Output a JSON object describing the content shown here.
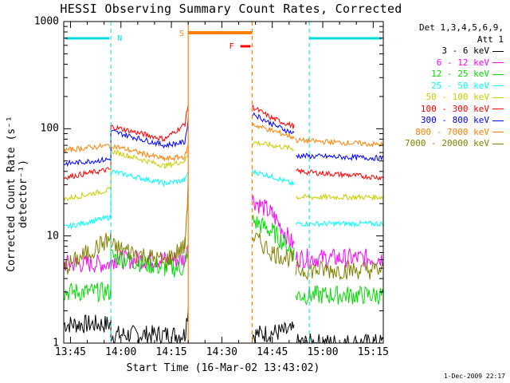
{
  "title": "HESSI Observing Summary Count Rates, Corrected",
  "xlabel": "Start Time (16-Mar-02 13:43:02)",
  "ylabel": "Corrected Count Rate (s⁻¹ detector⁻¹)",
  "timestamp": "1-Dec-2009 22:17",
  "legend": {
    "header_line1": "Det 1,3,4,5,6,9,",
    "header_line2": "Att 1",
    "items": [
      {
        "label": "3 - 6 keV",
        "color": "#000000"
      },
      {
        "label": "6 - 12 keV",
        "color": "#ff00ff"
      },
      {
        "label": "12 - 25 keV",
        "color": "#00dd00"
      },
      {
        "label": "25 - 50 keV",
        "color": "#00ffff"
      },
      {
        "label": "50 - 100 keV",
        "color": "#cccc00"
      },
      {
        "label": "100 - 300 keV",
        "color": "#ff0000"
      },
      {
        "label": "300 - 800 keV",
        "color": "#0000ff"
      },
      {
        "label": "800 - 7000 keV",
        "color": "#ff8000"
      },
      {
        "label": "7000 - 20000 keV",
        "color": "#808000"
      }
    ]
  },
  "x_tick_labels": [
    "13:45",
    "14:00",
    "14:15",
    "14:30",
    "14:45",
    "15:00",
    "15:15"
  ],
  "y_tick_labels": [
    "1",
    "10",
    "100",
    "1000"
  ],
  "flags": [
    {
      "label": "N",
      "color": "#00dddd"
    },
    {
      "label": "S",
      "color": "#ff8000"
    },
    {
      "label": "F",
      "color": "#ff0000"
    }
  ],
  "chart_data": {
    "type": "line",
    "y_scale": "log",
    "ylim": [
      1,
      1000
    ],
    "xlim_minutes": [
      -2,
      93
    ],
    "x_ticks_minutes": [
      0,
      15,
      30,
      45,
      60,
      75,
      90
    ],
    "gaps": [
      [
        35,
        54
      ],
      [
        66.5,
        67
      ]
    ],
    "night_boundaries": [
      12,
      71
    ],
    "saa": [
      35,
      54
    ],
    "flare": [
      50.5,
      53.5
    ],
    "series": [
      {
        "name": "3 - 6 keV",
        "segments": [
          [
            [
              -2,
              1.5
            ],
            [
              12,
              1.5
            ],
            [
              12,
              1.2
            ],
            [
              34,
              1.2
            ],
            [
              35,
              2.2
            ]
          ],
          [
            [
              54,
              1.2
            ],
            [
              66.5,
              1.3
            ]
          ],
          [
            [
              67,
              1.0
            ],
            [
              93,
              1.0
            ]
          ]
        ]
      },
      {
        "name": "6 - 12 keV",
        "segments": [
          [
            [
              -2,
              5.5
            ],
            [
              12,
              5.5
            ],
            [
              12,
              6.0
            ],
            [
              34,
              6.0
            ],
            [
              35,
              10
            ]
          ],
          [
            [
              54,
              22
            ],
            [
              60,
              16
            ],
            [
              66.5,
              8
            ]
          ],
          [
            [
              67,
              6.2
            ],
            [
              93,
              6.2
            ]
          ]
        ]
      },
      {
        "name": "12 - 25 keV",
        "segments": [
          [
            [
              -2,
              3.0
            ],
            [
              12,
              3.0
            ],
            [
              12,
              6.5
            ],
            [
              28,
              5.0
            ],
            [
              34,
              5.0
            ],
            [
              35,
              8
            ]
          ],
          [
            [
              54,
              14
            ],
            [
              60,
              11
            ],
            [
              66.5,
              7
            ]
          ],
          [
            [
              67,
              2.8
            ],
            [
              93,
              2.8
            ]
          ]
        ]
      },
      {
        "name": "25 - 50 keV",
        "segments": [
          [
            [
              -2,
              12
            ],
            [
              12,
              15
            ],
            [
              12,
              40
            ],
            [
              28,
              31
            ],
            [
              34,
              33
            ],
            [
              35,
              40
            ]
          ],
          [
            [
              54,
              40
            ],
            [
              60,
              36
            ],
            [
              66.5,
              30
            ]
          ],
          [
            [
              67,
              13
            ],
            [
              93,
              13
            ]
          ]
        ]
      },
      {
        "name": "50 - 100 keV",
        "segments": [
          [
            [
              -2,
              22
            ],
            [
              12,
              27
            ],
            [
              12,
              62
            ],
            [
              28,
              45
            ],
            [
              34,
              50
            ],
            [
              35,
              60
            ]
          ],
          [
            [
              54,
              75
            ],
            [
              60,
              70
            ],
            [
              66.5,
              65
            ]
          ],
          [
            [
              67,
              23
            ],
            [
              93,
              23
            ]
          ]
        ]
      },
      {
        "name": "100 - 300 keV",
        "segments": [
          [
            [
              -2,
              35
            ],
            [
              12,
              42
            ],
            [
              12,
              105
            ],
            [
              28,
              80
            ],
            [
              34,
              110
            ],
            [
              35,
              170
            ]
          ],
          [
            [
              54,
              160
            ],
            [
              60,
              125
            ],
            [
              66.5,
              105
            ]
          ],
          [
            [
              67,
              40
            ],
            [
              93,
              35
            ]
          ]
        ]
      },
      {
        "name": "300 - 800 keV",
        "segments": [
          [
            [
              -2,
              47
            ],
            [
              12,
              52
            ],
            [
              12,
              95
            ],
            [
              28,
              70
            ],
            [
              34,
              75
            ],
            [
              35,
              120
            ]
          ],
          [
            [
              54,
              140
            ],
            [
              60,
              110
            ],
            [
              66.5,
              90
            ]
          ],
          [
            [
              67,
              56
            ],
            [
              93,
              53
            ]
          ]
        ]
      },
      {
        "name": "800 - 7000 keV",
        "segments": [
          [
            [
              -2,
              63
            ],
            [
              12,
              70
            ],
            [
              12,
              70
            ],
            [
              28,
              52
            ],
            [
              34,
              55
            ],
            [
              35,
              70
            ]
          ],
          [
            [
              54,
              110
            ],
            [
              60,
              96
            ],
            [
              66.5,
              83
            ]
          ],
          [
            [
              67,
              78
            ],
            [
              93,
              71
            ]
          ]
        ]
      },
      {
        "name": "7000 - 20000 keV",
        "segments": [
          [
            [
              -2,
              5.0
            ],
            [
              12,
              9.5
            ],
            [
              12,
              8.0
            ],
            [
              28,
              5.8
            ],
            [
              34,
              8
            ],
            [
              35,
              30
            ]
          ],
          [
            [
              54,
              10
            ],
            [
              60,
              7
            ],
            [
              66.5,
              6
            ]
          ],
          [
            [
              67,
              4.8
            ],
            [
              93,
              4.8
            ]
          ]
        ]
      }
    ]
  }
}
